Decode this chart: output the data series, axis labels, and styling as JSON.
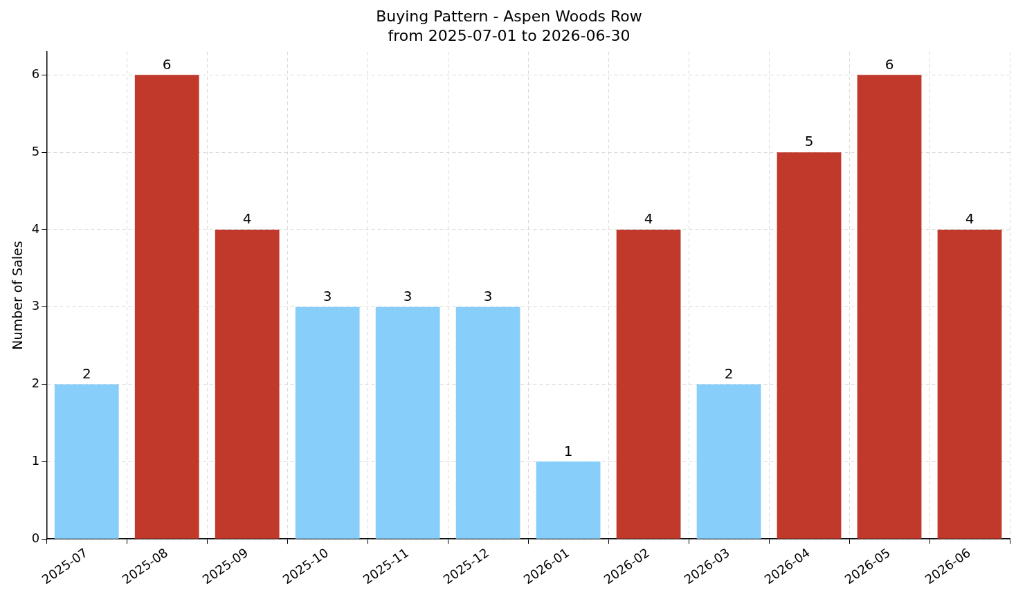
{
  "chart_data": {
    "type": "bar",
    "title": "Buying Pattern - Aspen Woods Row",
    "subtitle": "from 2025-07-01 to 2026-06-30",
    "ylabel": "Number of Sales",
    "categories": [
      "2025-07",
      "2025-08",
      "2025-09",
      "2025-10",
      "2025-11",
      "2025-12",
      "2026-01",
      "2026-02",
      "2026-03",
      "2026-04",
      "2026-05",
      "2026-06"
    ],
    "values": [
      2,
      6,
      4,
      3,
      3,
      3,
      1,
      4,
      2,
      5,
      6,
      4
    ],
    "colors": [
      "#87cefa",
      "#c0392b",
      "#c0392b",
      "#87cefa",
      "#87cefa",
      "#87cefa",
      "#87cefa",
      "#c0392b",
      "#87cefa",
      "#c0392b",
      "#c0392b",
      "#c0392b"
    ],
    "ylim": [
      0,
      6.3
    ],
    "yticks": [
      0,
      1,
      2,
      3,
      4,
      5,
      6
    ],
    "grid": true,
    "data_labels": true
  }
}
